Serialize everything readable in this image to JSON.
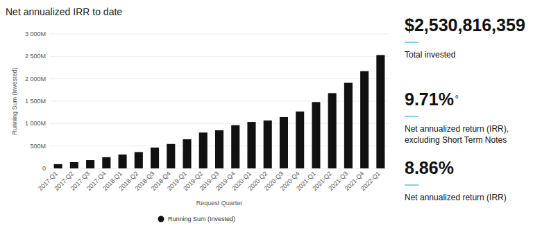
{
  "chart_data": {
    "type": "bar",
    "title": "Net annualized IRR to date",
    "x_label": "Request Quarter",
    "y_label": "Running Sum (Invested)",
    "categories": [
      "2017-Q1",
      "2017-Q2",
      "2017-Q3",
      "2017-Q4",
      "2018-Q1",
      "2018-Q2",
      "2018-Q3",
      "2018-Q4",
      "2019-Q1",
      "2019-Q2",
      "2019-Q3",
      "2019-Q4",
      "2020-Q1",
      "2020-Q2",
      "2020-Q3",
      "2020-Q4",
      "2021-Q1",
      "2021-Q2",
      "2021-Q3",
      "2021-Q4",
      "2022-Q1"
    ],
    "series": [
      {
        "name": "Running Sum (Invested)",
        "color": "#111111",
        "values": [
          95,
          140,
          185,
          250,
          310,
          365,
          465,
          545,
          650,
          800,
          850,
          965,
          1035,
          1070,
          1145,
          1270,
          1480,
          1680,
          1910,
          2170,
          2530
        ]
      }
    ],
    "ylim": [
      0,
      3000
    ],
    "yticks": [
      0,
      {
        "value": 500,
        "label": "500M"
      },
      {
        "value": 1000,
        "label": "1 000M"
      },
      {
        "value": 1500,
        "label": "1 500M"
      },
      {
        "value": 2000,
        "label": "2 000M"
      },
      {
        "value": 2500,
        "label": "2 500M"
      },
      {
        "value": 3000,
        "label": "3 000M"
      }
    ],
    "grid": true,
    "legend": "bottom",
    "annotations": [
      {
        "text": "$2,530,816,359",
        "label": "Total invested"
      },
      {
        "text": "9.71%",
        "footnote": "6",
        "label": "Net annualized return (IRR), excluding Short Term Notes"
      },
      {
        "text": "8.86%",
        "label": "Net annualized return (IRR)"
      }
    ]
  }
}
